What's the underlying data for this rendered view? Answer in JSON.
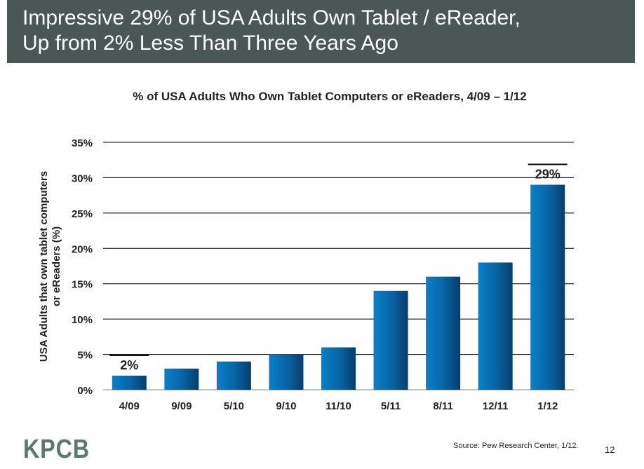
{
  "slide": {
    "title_line1": "Impressive 29% of USA Adults Own Tablet / eReader,",
    "title_line2": "Up from 2% Less Than Three Years Ago",
    "logo": "KPCB",
    "source": "Source: Pew Research Center, 1/12.",
    "page_number": "12"
  },
  "chart_data": {
    "type": "bar",
    "title": "% of USA Adults Who Own Tablet Computers or eReaders, 4/09 – 1/12",
    "xlabel": "",
    "ylabel": "USA Adults that own tablet computers or eReaders (%)",
    "ylabel_lines": [
      "USA Adults that own tablet computers",
      "or eReaders (%)"
    ],
    "categories": [
      "4/09",
      "9/09",
      "5/10",
      "9/10",
      "11/10",
      "5/11",
      "8/11",
      "12/11",
      "1/12"
    ],
    "values": [
      2,
      3,
      4,
      5,
      6,
      14,
      16,
      18,
      29
    ],
    "ylim": [
      0,
      35
    ],
    "yticks": [
      0,
      5,
      10,
      15,
      20,
      25,
      30,
      35
    ],
    "ytick_labels": [
      "0%",
      "5%",
      "10%",
      "15%",
      "20%",
      "25%",
      "30%",
      "35%"
    ],
    "data_labels": [
      {
        "category": "4/09",
        "text": "2%"
      },
      {
        "category": "1/12",
        "text": "29%"
      }
    ],
    "grid": true,
    "bar_color": "#0a78c0"
  }
}
